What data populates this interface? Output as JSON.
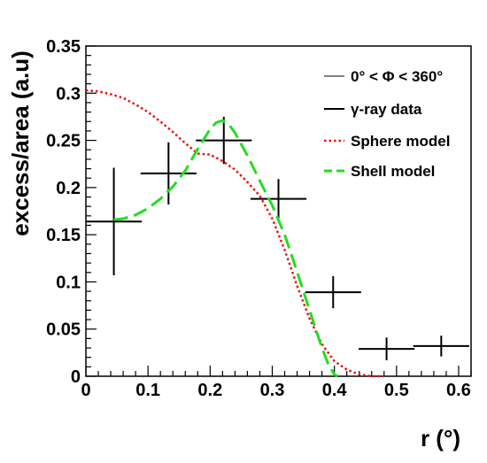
{
  "chart_data": {
    "type": "scatter",
    "xlabel": "r (°)",
    "ylabel": "excess/area (a.u)",
    "xlim": [
      0,
      0.62
    ],
    "ylim": [
      0,
      0.35
    ],
    "xticks": [
      0,
      0.1,
      0.2,
      0.3,
      0.4,
      0.5,
      0.6
    ],
    "xtick_labels": [
      "0",
      "0.1",
      "0.2",
      "0.3",
      "0.4",
      "0.5",
      "0.6"
    ],
    "yticks": [
      0,
      0.05,
      0.1,
      0.15,
      0.2,
      0.25,
      0.3,
      0.35
    ],
    "ytick_labels": [
      "0",
      "0.05",
      "0.1",
      "0.15",
      "0.2",
      "0.25",
      "0.3",
      "0.35"
    ],
    "grid": false,
    "legend_position": "top-right",
    "legend": [
      {
        "label": "0° < Φ < 360°",
        "style": "thin-line",
        "color": "#000000"
      },
      {
        "label": "γ-ray data",
        "style": "thick-line",
        "color": "#000000"
      },
      {
        "label": "Sphere model",
        "style": "dotted",
        "color": "#ee1111"
      },
      {
        "label": "Shell model",
        "style": "dashed",
        "color": "#22dd22"
      }
    ],
    "series": [
      {
        "name": "γ-ray data",
        "kind": "errorbar",
        "color": "#000000",
        "points": [
          {
            "x": 0.045,
            "y": 0.164,
            "xerr": 0.045,
            "yerr": 0.057
          },
          {
            "x": 0.133,
            "y": 0.215,
            "xerr": 0.045,
            "yerr": 0.033
          },
          {
            "x": 0.222,
            "y": 0.25,
            "xerr": 0.045,
            "yerr": 0.025
          },
          {
            "x": 0.31,
            "y": 0.188,
            "xerr": 0.045,
            "yerr": 0.021
          },
          {
            "x": 0.398,
            "y": 0.089,
            "xerr": 0.045,
            "yerr": 0.017
          },
          {
            "x": 0.484,
            "y": 0.029,
            "xerr": 0.045,
            "yerr": 0.012
          },
          {
            "x": 0.572,
            "y": 0.032,
            "xerr": 0.045,
            "yerr": 0.011
          }
        ]
      },
      {
        "name": "Sphere model",
        "kind": "line",
        "color": "#ee1111",
        "points": [
          [
            0.0,
            0.303
          ],
          [
            0.02,
            0.302
          ],
          [
            0.04,
            0.299
          ],
          [
            0.06,
            0.295
          ],
          [
            0.08,
            0.288
          ],
          [
            0.1,
            0.28
          ],
          [
            0.12,
            0.27
          ],
          [
            0.14,
            0.259
          ],
          [
            0.16,
            0.247
          ],
          [
            0.18,
            0.236
          ],
          [
            0.2,
            0.235
          ],
          [
            0.22,
            0.228
          ],
          [
            0.24,
            0.219
          ],
          [
            0.26,
            0.206
          ],
          [
            0.28,
            0.191
          ],
          [
            0.3,
            0.167
          ],
          [
            0.32,
            0.134
          ],
          [
            0.34,
            0.096
          ],
          [
            0.36,
            0.061
          ],
          [
            0.38,
            0.034
          ],
          [
            0.4,
            0.016
          ],
          [
            0.42,
            0.007
          ],
          [
            0.44,
            0.002
          ],
          [
            0.46,
            0.0
          ],
          [
            0.48,
            0.0
          ]
        ]
      },
      {
        "name": "Shell model",
        "kind": "line",
        "color": "#22dd22",
        "points": [
          [
            0.045,
            0.166
          ],
          [
            0.06,
            0.167
          ],
          [
            0.08,
            0.171
          ],
          [
            0.1,
            0.178
          ],
          [
            0.12,
            0.188
          ],
          [
            0.14,
            0.201
          ],
          [
            0.16,
            0.218
          ],
          [
            0.18,
            0.241
          ],
          [
            0.2,
            0.262
          ],
          [
            0.21,
            0.269
          ],
          [
            0.22,
            0.271
          ],
          [
            0.23,
            0.267
          ],
          [
            0.24,
            0.258
          ],
          [
            0.26,
            0.234
          ],
          [
            0.28,
            0.207
          ],
          [
            0.3,
            0.181
          ],
          [
            0.32,
            0.15
          ],
          [
            0.34,
            0.111
          ],
          [
            0.36,
            0.07
          ],
          [
            0.38,
            0.03
          ],
          [
            0.39,
            0.013
          ],
          [
            0.4,
            0.002
          ],
          [
            0.405,
            0.0
          ]
        ]
      }
    ]
  }
}
